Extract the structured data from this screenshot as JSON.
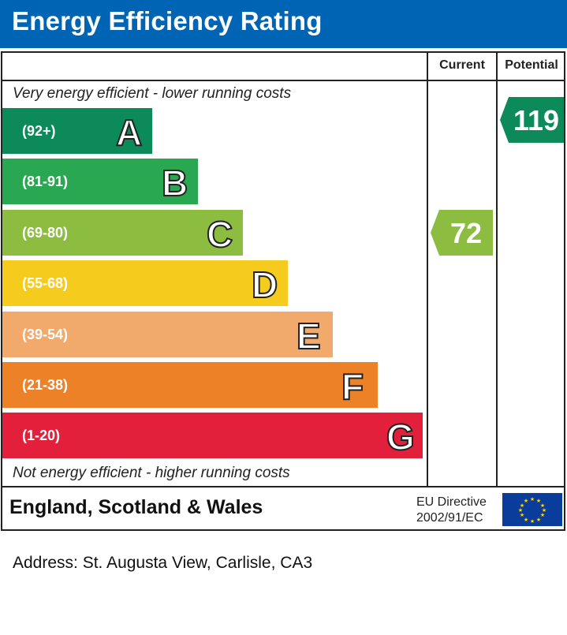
{
  "header": {
    "title": "Energy Efficiency Rating"
  },
  "columns": {
    "current": "Current",
    "potential": "Potential"
  },
  "notes": {
    "top": "Very energy efficient - lower running costs",
    "bottom": "Not energy efficient - higher running costs"
  },
  "footer": {
    "region": "England, Scotland & Wales",
    "eu_line1": "EU Directive",
    "eu_line2": "2002/91/EC"
  },
  "address": "Address: St. Augusta View, Carlisle, CA3",
  "chart_data": {
    "type": "bar",
    "title": "Energy Efficiency Rating",
    "categories": [
      "A",
      "B",
      "C",
      "D",
      "E",
      "F",
      "G"
    ],
    "ranges": [
      "(92+)",
      "(81-91)",
      "(69-80)",
      "(55-68)",
      "(39-54)",
      "(21-38)",
      "(1-20)"
    ],
    "colors": [
      "#0c8a5a",
      "#2aa851",
      "#8cbd41",
      "#f5cc1d",
      "#f2a96c",
      "#ec8127",
      "#e2203c"
    ],
    "current": {
      "value": 72,
      "band": "C",
      "color": "#8cbd41"
    },
    "potential": {
      "value": 119,
      "band": "A",
      "color": "#0c8a5a"
    }
  }
}
